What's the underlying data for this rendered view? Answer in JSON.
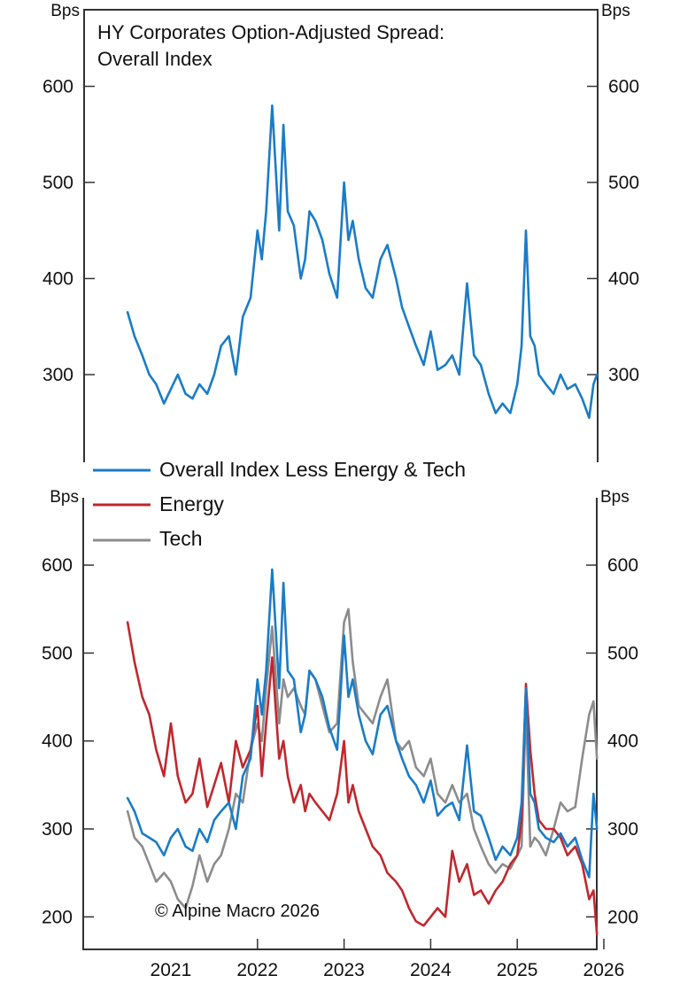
{
  "chart_data": [
    {
      "type": "line",
      "panel": "top",
      "title": "HY Corporates Option-Adjusted Spread:",
      "subtitle": "Overall Index",
      "ylabel_left": "Bps",
      "ylabel_right": "Bps",
      "ylim": [
        210,
        650
      ],
      "yticks": [
        300,
        400,
        500,
        600
      ],
      "grid": false,
      "x": [
        2020.5,
        2020.58,
        2020.67,
        2020.75,
        2020.83,
        2020.92,
        2021.0,
        2021.08,
        2021.17,
        2021.25,
        2021.33,
        2021.42,
        2021.5,
        2021.58,
        2021.67,
        2021.75,
        2021.83,
        2021.92,
        2022.0,
        2022.05,
        2022.1,
        2022.17,
        2022.25,
        2022.3,
        2022.35,
        2022.42,
        2022.5,
        2022.55,
        2022.6,
        2022.67,
        2022.75,
        2022.83,
        2022.92,
        2023.0,
        2023.05,
        2023.1,
        2023.17,
        2023.25,
        2023.33,
        2023.42,
        2023.5,
        2023.6,
        2023.67,
        2023.75,
        2023.83,
        2023.92,
        2024.0,
        2024.08,
        2024.17,
        2024.25,
        2024.33,
        2024.42,
        2024.5,
        2024.58,
        2024.67,
        2024.75,
        2024.83,
        2024.92,
        2025.0,
        2025.05,
        2025.1,
        2025.15,
        2025.2,
        2025.25,
        2025.33,
        2025.42,
        2025.5,
        2025.58,
        2025.67,
        2025.75,
        2025.83,
        2025.88,
        2025.92
      ],
      "series": [
        {
          "name": "Overall Index",
          "color": "#1a7cc7",
          "values": [
            365,
            340,
            320,
            300,
            290,
            270,
            285,
            300,
            280,
            275,
            290,
            280,
            300,
            330,
            340,
            300,
            360,
            380,
            450,
            420,
            470,
            580,
            450,
            560,
            470,
            455,
            400,
            420,
            470,
            460,
            440,
            405,
            380,
            500,
            440,
            460,
            420,
            390,
            380,
            420,
            435,
            400,
            370,
            350,
            330,
            310,
            345,
            305,
            310,
            320,
            300,
            395,
            320,
            310,
            280,
            260,
            270,
            260,
            290,
            330,
            450,
            340,
            330,
            300,
            290,
            280,
            300,
            285,
            290,
            275,
            255,
            290,
            300
          ]
        }
      ]
    },
    {
      "type": "line",
      "panel": "bottom",
      "ylabel_left": "Bps",
      "ylabel_right": "Bps",
      "ylim": [
        165,
        645
      ],
      "yticks": [
        200,
        300,
        400,
        500,
        600
      ],
      "xticks": [
        "2021",
        "2022",
        "2023",
        "2024",
        "2025",
        "2026"
      ],
      "grid": false,
      "legend": "top-left",
      "x": [
        2020.5,
        2020.58,
        2020.67,
        2020.75,
        2020.83,
        2020.92,
        2021.0,
        2021.08,
        2021.17,
        2021.25,
        2021.33,
        2021.42,
        2021.5,
        2021.58,
        2021.67,
        2021.75,
        2021.83,
        2021.92,
        2022.0,
        2022.05,
        2022.1,
        2022.17,
        2022.25,
        2022.3,
        2022.35,
        2022.42,
        2022.5,
        2022.55,
        2022.6,
        2022.67,
        2022.75,
        2022.83,
        2022.92,
        2023.0,
        2023.05,
        2023.1,
        2023.17,
        2023.25,
        2023.33,
        2023.42,
        2023.5,
        2023.6,
        2023.67,
        2023.75,
        2023.83,
        2023.92,
        2024.0,
        2024.08,
        2024.17,
        2024.25,
        2024.33,
        2024.42,
        2024.5,
        2024.58,
        2024.67,
        2024.75,
        2024.83,
        2024.92,
        2025.0,
        2025.05,
        2025.1,
        2025.15,
        2025.2,
        2025.25,
        2025.33,
        2025.42,
        2025.5,
        2025.58,
        2025.67,
        2025.75,
        2025.83,
        2025.88,
        2025.92
      ],
      "series": [
        {
          "name": "Overall Index Less Energy & Tech",
          "color": "#1a7cc7",
          "values": [
            335,
            320,
            295,
            290,
            285,
            270,
            290,
            300,
            280,
            275,
            300,
            285,
            310,
            320,
            330,
            300,
            360,
            380,
            470,
            430,
            480,
            595,
            460,
            580,
            480,
            470,
            410,
            430,
            480,
            470,
            450,
            415,
            390,
            520,
            450,
            470,
            430,
            400,
            385,
            430,
            440,
            400,
            380,
            360,
            350,
            330,
            355,
            315,
            325,
            330,
            310,
            395,
            320,
            315,
            290,
            265,
            280,
            270,
            290,
            330,
            460,
            340,
            330,
            300,
            290,
            285,
            295,
            280,
            290,
            265,
            245,
            340,
            300
          ]
        },
        {
          "name": "Energy",
          "color": "#c1272d",
          "values": [
            535,
            490,
            450,
            430,
            390,
            360,
            420,
            360,
            330,
            340,
            380,
            325,
            350,
            375,
            330,
            400,
            370,
            390,
            440,
            360,
            420,
            495,
            380,
            400,
            360,
            330,
            350,
            320,
            340,
            330,
            320,
            310,
            340,
            400,
            330,
            350,
            320,
            300,
            280,
            270,
            250,
            240,
            230,
            210,
            195,
            190,
            200,
            210,
            200,
            275,
            240,
            260,
            225,
            230,
            215,
            230,
            240,
            260,
            270,
            310,
            465,
            390,
            340,
            310,
            300,
            300,
            290,
            270,
            280,
            260,
            220,
            230,
            180
          ]
        },
        {
          "name": "Tech",
          "color": "#8c8c8c",
          "values": [
            320,
            290,
            280,
            260,
            240,
            250,
            240,
            220,
            210,
            235,
            270,
            240,
            260,
            270,
            300,
            340,
            330,
            390,
            420,
            400,
            460,
            530,
            420,
            470,
            450,
            460,
            440,
            430,
            480,
            470,
            440,
            410,
            420,
            535,
            550,
            490,
            440,
            430,
            420,
            450,
            470,
            400,
            390,
            400,
            370,
            360,
            380,
            340,
            330,
            350,
            330,
            340,
            300,
            280,
            260,
            250,
            260,
            255,
            270,
            280,
            440,
            280,
            290,
            285,
            270,
            300,
            330,
            320,
            325,
            380,
            430,
            445,
            380
          ]
        }
      ]
    }
  ],
  "annotations": {
    "copyright": "© Alpine Macro 2026"
  }
}
